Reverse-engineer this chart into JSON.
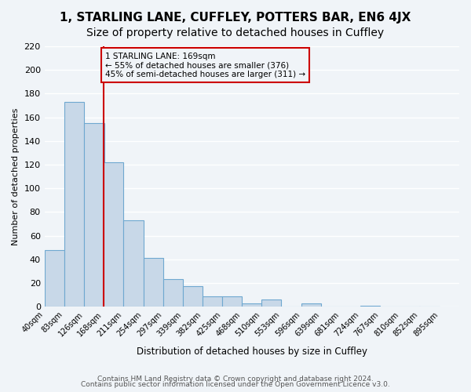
{
  "title": "1, STARLING LANE, CUFFLEY, POTTERS BAR, EN6 4JX",
  "subtitle": "Size of property relative to detached houses in Cuffley",
  "xlabel": "Distribution of detached houses by size in Cuffley",
  "ylabel": "Number of detached properties",
  "bar_values": [
    48,
    173,
    155,
    122,
    73,
    41,
    23,
    17,
    9,
    9,
    3,
    6,
    0,
    3,
    0,
    0,
    1,
    0,
    0,
    0
  ],
  "bin_labels": [
    "40sqm",
    "83sqm",
    "126sqm",
    "168sqm",
    "211sqm",
    "254sqm",
    "297sqm",
    "339sqm",
    "382sqm",
    "425sqm",
    "468sqm",
    "510sqm",
    "553sqm",
    "596sqm",
    "639sqm",
    "681sqm",
    "724sqm",
    "767sqm",
    "810sqm",
    "852sqm",
    "895sqm"
  ],
  "bin_edges": [
    40,
    83,
    126,
    168,
    211,
    254,
    297,
    339,
    382,
    425,
    468,
    510,
    553,
    596,
    639,
    681,
    724,
    767,
    810,
    852,
    895
  ],
  "bar_color": "#c8d8e8",
  "bar_edge_color": "#6fa8d0",
  "vline_x": 168,
  "vline_color": "#cc0000",
  "ylim": [
    0,
    220
  ],
  "yticks": [
    0,
    20,
    40,
    60,
    80,
    100,
    120,
    140,
    160,
    180,
    200,
    220
  ],
  "annotation_text": "1 STARLING LANE: 169sqm\n← 55% of detached houses are smaller (376)\n45% of semi-detached houses are larger (311) →",
  "annotation_box_edge": "#cc0000",
  "footer1": "Contains HM Land Registry data © Crown copyright and database right 2024.",
  "footer2": "Contains public sector information licensed under the Open Government Licence v3.0.",
  "background_color": "#f0f4f8",
  "grid_color": "#ffffff",
  "title_fontsize": 11,
  "subtitle_fontsize": 10
}
